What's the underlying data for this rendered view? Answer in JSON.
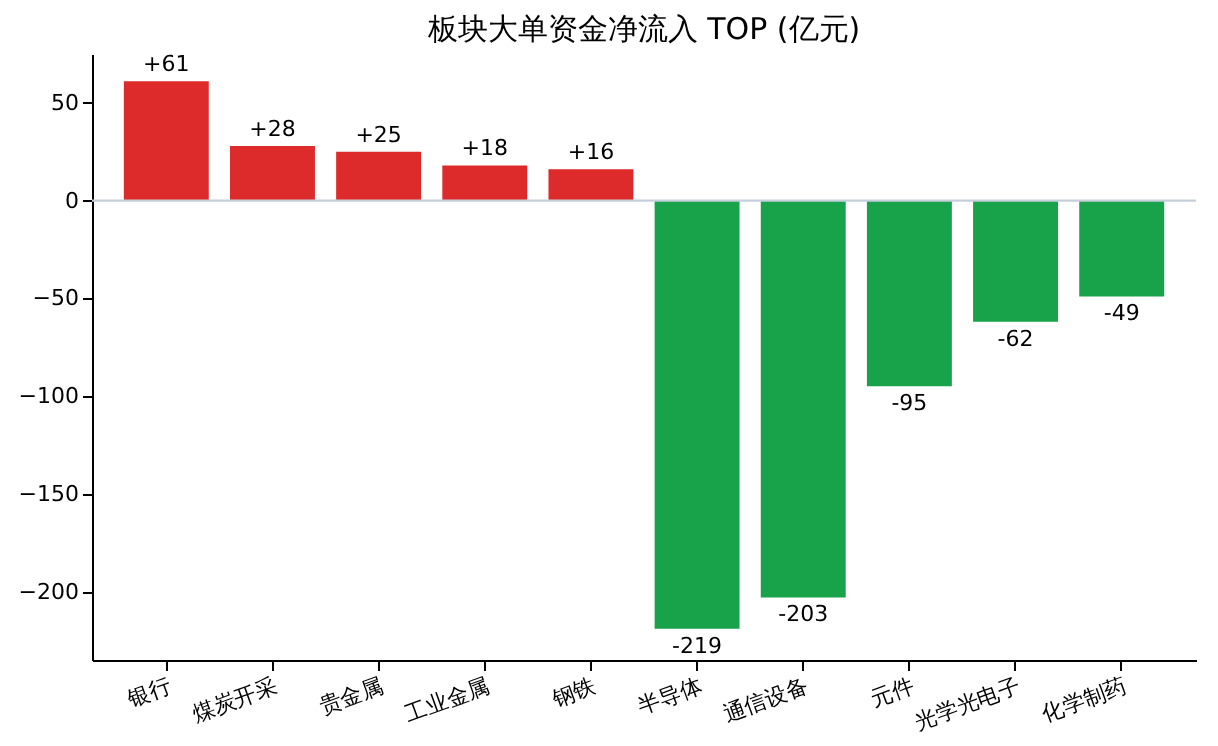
{
  "chart_data": {
    "type": "bar",
    "title": "板块大单资金净流入 TOP (亿元)",
    "categories": [
      "银行",
      "煤炭开采",
      "贵金属",
      "工业金属",
      "钢铁",
      "半导体",
      "通信设备",
      "元件",
      "光学光电子",
      "化学制药"
    ],
    "values": [
      61,
      28,
      25,
      18,
      16,
      -219,
      -203,
      -95,
      -62,
      -49
    ],
    "colors": [
      "#dd2a2a",
      "#dd2a2a",
      "#dd2a2a",
      "#dd2a2a",
      "#dd2a2a",
      "#18a34a",
      "#18a34a",
      "#18a34a",
      "#18a34a",
      "#18a34a"
    ],
    "value_labels": [
      "+61",
      "+28",
      "+25",
      "+18",
      "+16",
      "-219",
      "-203",
      "-95",
      "-62",
      "-49"
    ],
    "ylim": [
      -235,
      75
    ],
    "yticks": [
      -200,
      -150,
      -100,
      -50,
      0,
      50
    ],
    "ref_lines": [
      {
        "axis": "y",
        "value": 0,
        "color": "#c5cfdc"
      }
    ],
    "grid": false
  }
}
